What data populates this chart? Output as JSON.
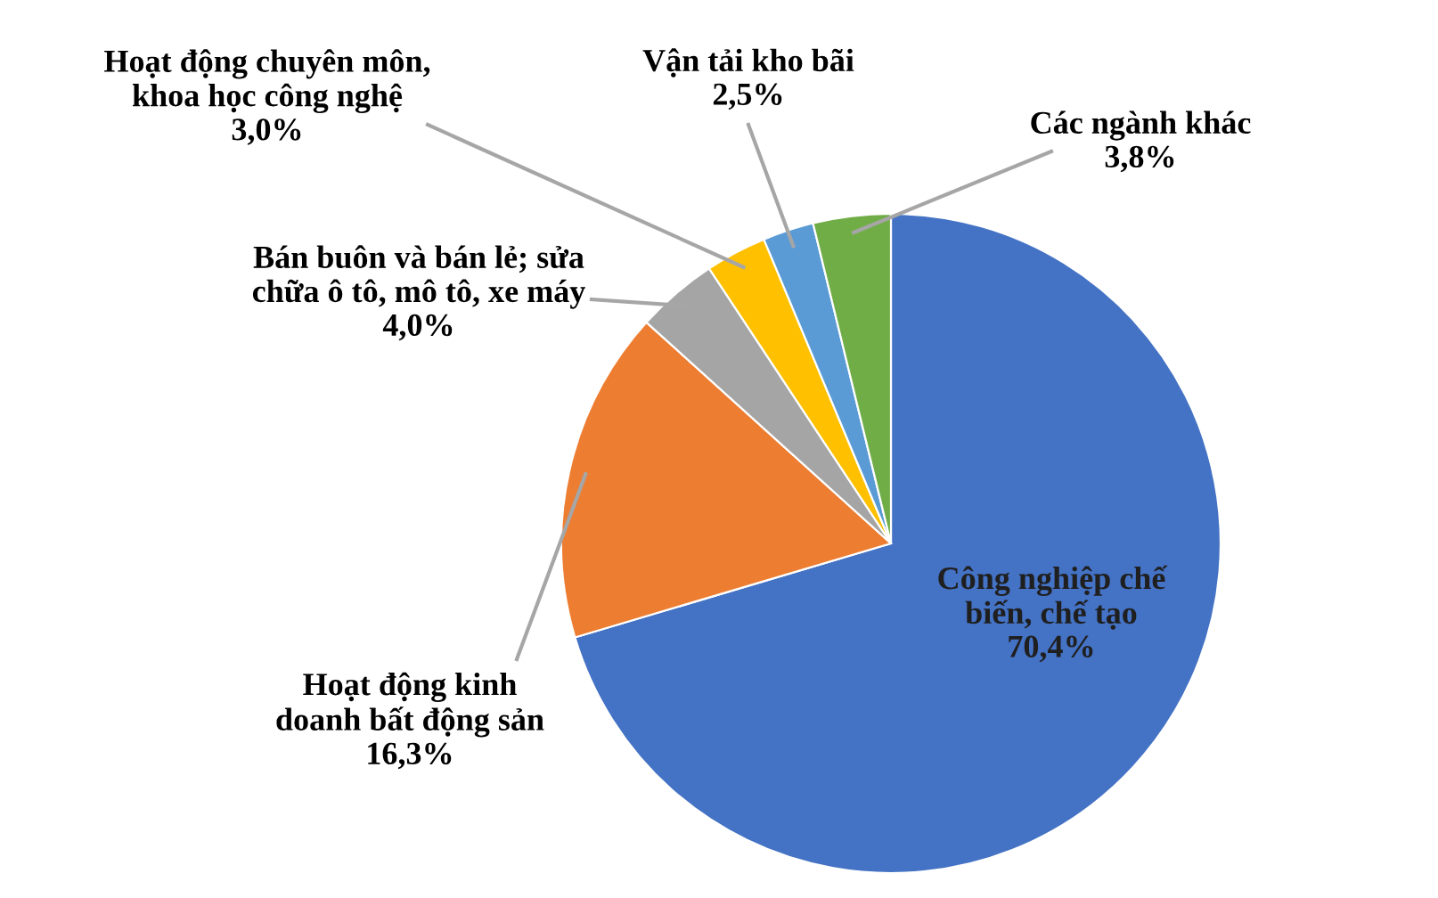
{
  "chart_data": {
    "type": "pie",
    "categories": [
      "Công nghiệp chế\nbiến, chế tạo",
      "Hoạt động kinh\ndoanh bất động sản",
      "Bán buôn và bán lẻ; sửa\nchữa ô tô, mô tô, xe máy",
      "Hoạt động chuyên môn,\nkhoa học công nghệ",
      "Vận tải kho bãi",
      "Các ngành khác"
    ],
    "values": [
      70.4,
      16.3,
      4.0,
      3.0,
      2.5,
      3.8
    ],
    "value_labels": [
      "70,4%",
      "16,3%",
      "4,0%",
      "3,0%",
      "2,5%",
      "3,8%"
    ],
    "colors": [
      "#4472c4",
      "#ed7d31",
      "#a5a5a5",
      "#ffc000",
      "#5b9bd5",
      "#70ad47"
    ]
  }
}
